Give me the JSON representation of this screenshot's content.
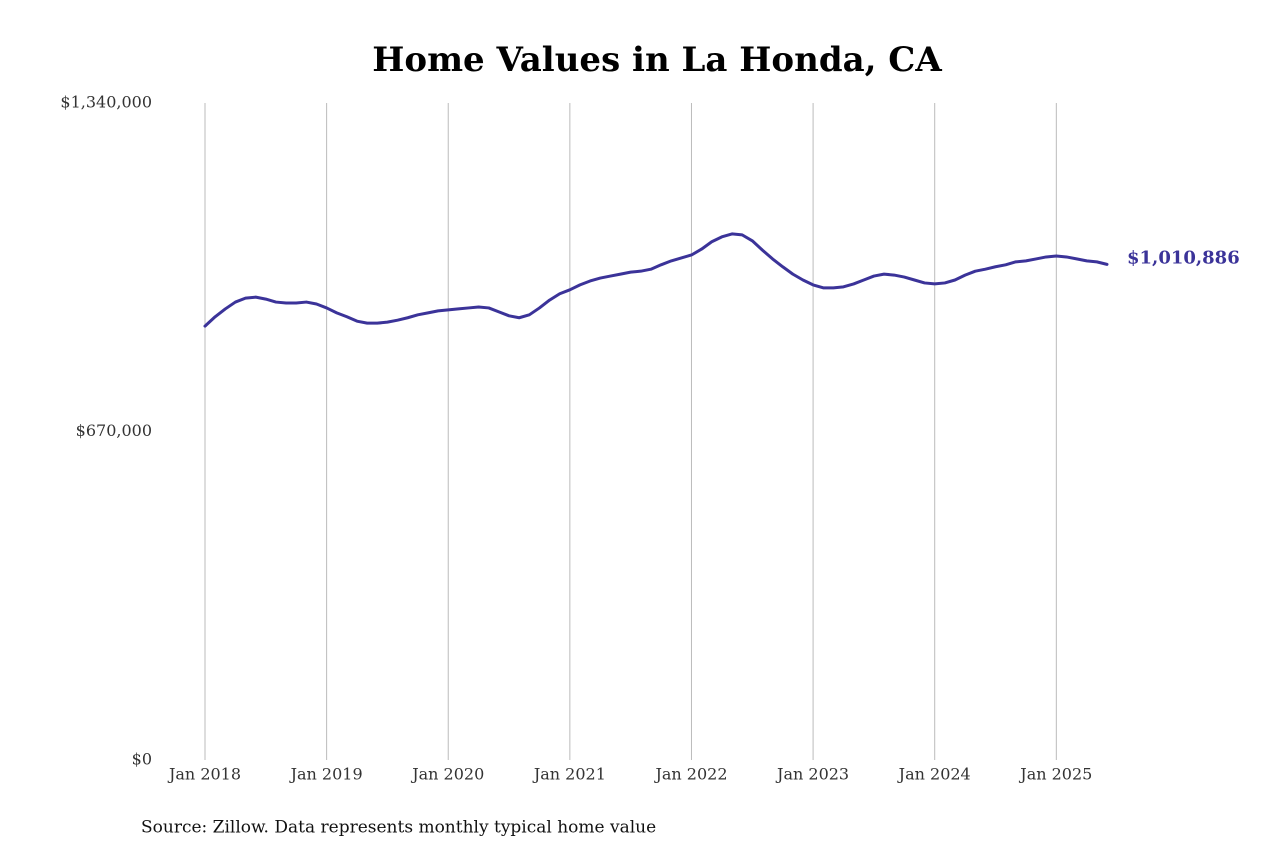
{
  "chart_data": {
    "type": "line",
    "title": "Home Values in La Honda, CA",
    "source": "Source: Zillow. Data represents monthly typical home value",
    "x": [
      "2018-01",
      "2018-02",
      "2018-03",
      "2018-04",
      "2018-05",
      "2018-06",
      "2018-07",
      "2018-08",
      "2018-09",
      "2018-10",
      "2018-11",
      "2018-12",
      "2019-01",
      "2019-02",
      "2019-03",
      "2019-04",
      "2019-05",
      "2019-06",
      "2019-07",
      "2019-08",
      "2019-09",
      "2019-10",
      "2019-11",
      "2019-12",
      "2020-01",
      "2020-02",
      "2020-03",
      "2020-04",
      "2020-05",
      "2020-06",
      "2020-07",
      "2020-08",
      "2020-09",
      "2020-10",
      "2020-11",
      "2020-12",
      "2021-01",
      "2021-02",
      "2021-03",
      "2021-04",
      "2021-05",
      "2021-06",
      "2021-07",
      "2021-08",
      "2021-09",
      "2021-10",
      "2021-11",
      "2021-12",
      "2022-01",
      "2022-02",
      "2022-03",
      "2022-04",
      "2022-05",
      "2022-06",
      "2022-07",
      "2022-08",
      "2022-09",
      "2022-10",
      "2022-11",
      "2022-12",
      "2023-01",
      "2023-02",
      "2023-03",
      "2023-04",
      "2023-05",
      "2023-06",
      "2023-07",
      "2023-08",
      "2023-09",
      "2023-10",
      "2023-11",
      "2023-12",
      "2024-01",
      "2024-02",
      "2024-03",
      "2024-04",
      "2024-05",
      "2024-06",
      "2024-07",
      "2024-08",
      "2024-09",
      "2024-10",
      "2024-11",
      "2024-12",
      "2025-01",
      "2025-02",
      "2025-03",
      "2025-04",
      "2025-05",
      "2025-06"
    ],
    "series": [
      {
        "name": "Home value",
        "color": "#3b3399",
        "values": [
          885000,
          904000,
          920000,
          934000,
          942000,
          944000,
          940000,
          934000,
          932000,
          932000,
          934000,
          930000,
          922000,
          912000,
          904000,
          895000,
          891000,
          891000,
          893000,
          897000,
          902000,
          908000,
          912000,
          916000,
          918000,
          920000,
          922000,
          924000,
          922000,
          914000,
          906000,
          902000,
          908000,
          922000,
          938000,
          951000,
          959000,
          969000,
          977000,
          983000,
          987000,
          991000,
          995000,
          997000,
          1001000,
          1010000,
          1018000,
          1024000,
          1030000,
          1042000,
          1057000,
          1067000,
          1073000,
          1071000,
          1059000,
          1040000,
          1022000,
          1006000,
          991000,
          979000,
          969000,
          963000,
          963000,
          965000,
          971000,
          979000,
          987000,
          991000,
          989000,
          985000,
          979000,
          973000,
          971000,
          973000,
          979000,
          989000,
          997000,
          1001000,
          1006000,
          1010000,
          1016000,
          1018000,
          1022000,
          1026000,
          1028000,
          1026000,
          1022000,
          1018000,
          1016000,
          1010886
        ],
        "value_labels": [
          null,
          null,
          null,
          null,
          null,
          null,
          null,
          null,
          null,
          null,
          null,
          null,
          null,
          null,
          null,
          null,
          null,
          null,
          null,
          null,
          null,
          null,
          null,
          null,
          null,
          null,
          null,
          null,
          null,
          null,
          null,
          null,
          null,
          null,
          null,
          null,
          null,
          null,
          null,
          null,
          null,
          null,
          null,
          null,
          null,
          null,
          null,
          null,
          null,
          null,
          null,
          null,
          null,
          null,
          null,
          null,
          null,
          null,
          null,
          null,
          null,
          null,
          null,
          null,
          null,
          null,
          null,
          null,
          null,
          null,
          null,
          null,
          null,
          null,
          null,
          null,
          null,
          null,
          null,
          null,
          null,
          null,
          null,
          null,
          null,
          null,
          null,
          null,
          null,
          "$1,010,886"
        ]
      }
    ],
    "xlim": [
      "2018-01",
      "2025-06"
    ],
    "xticks": [
      {
        "value": "2018-01",
        "label": "Jan 2018"
      },
      {
        "value": "2019-01",
        "label": "Jan 2019"
      },
      {
        "value": "2020-01",
        "label": "Jan 2020"
      },
      {
        "value": "2021-01",
        "label": "Jan 2021"
      },
      {
        "value": "2022-01",
        "label": "Jan 2022"
      },
      {
        "value": "2023-01",
        "label": "Jan 2023"
      },
      {
        "value": "2024-01",
        "label": "Jan 2024"
      },
      {
        "value": "2025-01",
        "label": "Jan 2025"
      }
    ],
    "ylim": [
      0,
      1340000
    ],
    "yticks": [
      {
        "value": 0,
        "label": "$0"
      },
      {
        "value": 670000,
        "label": "$670,000"
      },
      {
        "value": 1340000,
        "label": "$1,340,000"
      }
    ],
    "grid": "x"
  }
}
